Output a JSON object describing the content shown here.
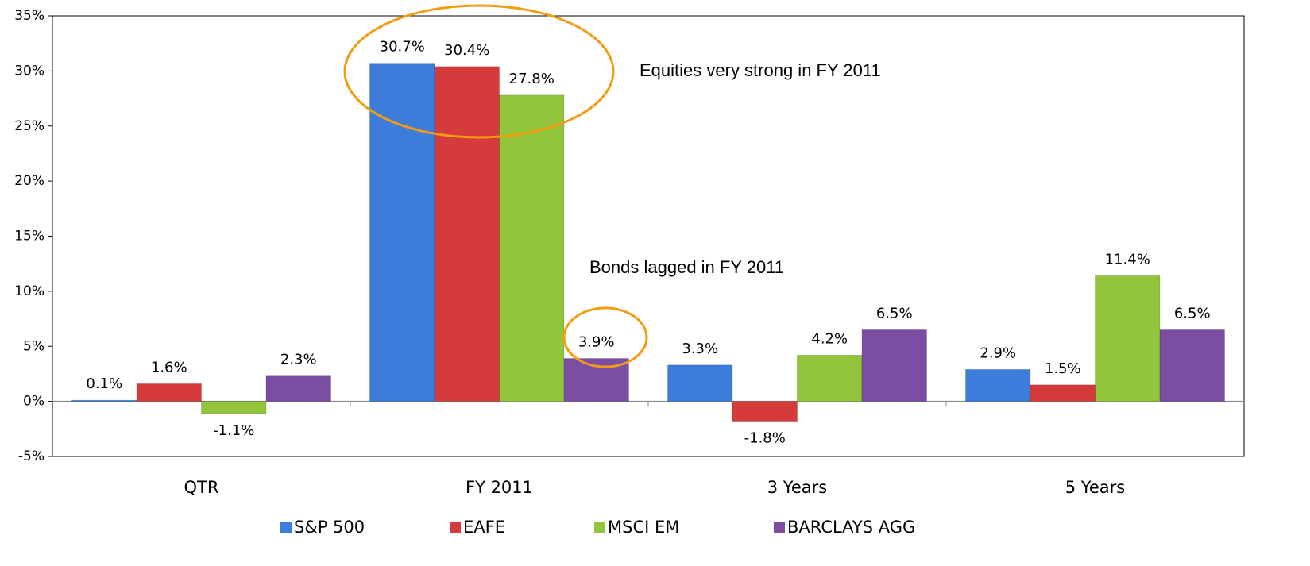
{
  "chart_data": {
    "type": "bar",
    "categories": [
      "QTR",
      "FY 2011",
      "3 Years",
      "5 Years"
    ],
    "series": [
      {
        "name": "S&P 500",
        "color": "#3b7dd8",
        "values": [
          0.1,
          30.7,
          3.3,
          2.9
        ],
        "value_labels": [
          "0.1%",
          "30.7%",
          "3.3%",
          "2.9%"
        ]
      },
      {
        "name": "EAFE",
        "color": "#d63b3b",
        "values": [
          1.6,
          30.4,
          -1.8,
          1.5
        ],
        "value_labels": [
          "1.6%",
          "30.4%",
          "-1.8%",
          "1.5%"
        ]
      },
      {
        "name": "MSCI EM",
        "color": "#92c43c",
        "values": [
          -1.1,
          27.8,
          4.2,
          11.4
        ],
        "value_labels": [
          "-1.1%",
          "27.8%",
          "4.2%",
          "11.4%"
        ]
      },
      {
        "name": "BARCLAYS AGG",
        "color": "#7b4ea3",
        "values": [
          2.3,
          3.9,
          6.5,
          6.5
        ],
        "value_labels": [
          "2.3%",
          "3.9%",
          "6.5%",
          "6.5%"
        ]
      }
    ],
    "ylim": [
      -5,
      35
    ],
    "yticks": [
      {
        "value": -5,
        "label": "-5%"
      },
      {
        "value": 0,
        "label": "0%"
      },
      {
        "value": 5,
        "label": "5%"
      },
      {
        "value": 10,
        "label": "10%"
      },
      {
        "value": 15,
        "label": "15%"
      },
      {
        "value": 20,
        "label": "20%"
      },
      {
        "value": 25,
        "label": "25%"
      },
      {
        "value": 30,
        "label": "30%"
      },
      {
        "value": 35,
        "label": "35%"
      }
    ],
    "annotations": [
      "Equities very strong in FY 2011",
      "Bonds lagged in FY 2011"
    ],
    "legend": "bottom"
  }
}
